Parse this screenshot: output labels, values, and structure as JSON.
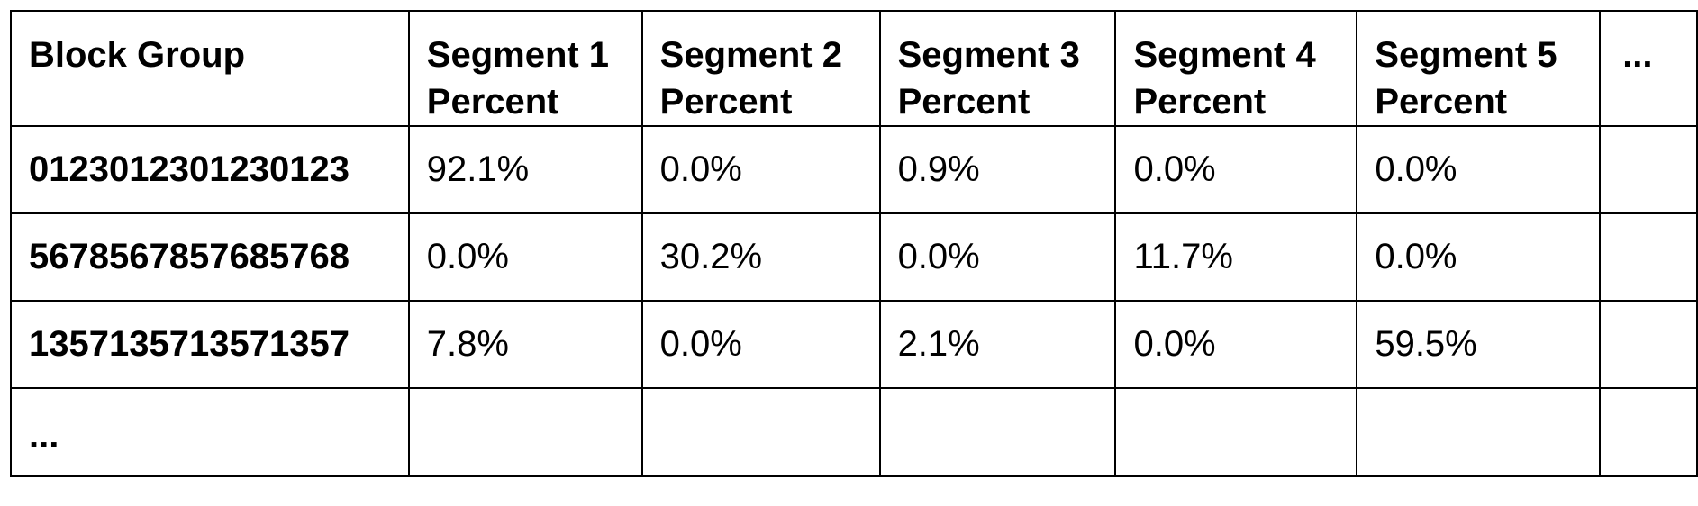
{
  "table": {
    "header": {
      "block_group": "Block Group",
      "segments": [
        {
          "line1": "Segment 1",
          "line2": "Percent"
        },
        {
          "line1": "Segment 2",
          "line2": "Percent"
        },
        {
          "line1": "Segment 3",
          "line2": "Percent"
        },
        {
          "line1": "Segment 4",
          "line2": "Percent"
        },
        {
          "line1": "Segment 5",
          "line2": "Percent"
        }
      ],
      "more": "..."
    },
    "rows": [
      {
        "block_group": "0123012301230123",
        "values": [
          "92.1%",
          "0.0%",
          "0.9%",
          "0.0%",
          "0.0%"
        ]
      },
      {
        "block_group": "5678567857685768",
        "values": [
          "0.0%",
          "30.2%",
          "0.0%",
          "11.7%",
          "0.0%"
        ]
      },
      {
        "block_group": "1357135713571357",
        "values": [
          "7.8%",
          "0.0%",
          "2.1%",
          "0.0%",
          "59.5%"
        ]
      }
    ],
    "ellipsis_row": "..."
  }
}
